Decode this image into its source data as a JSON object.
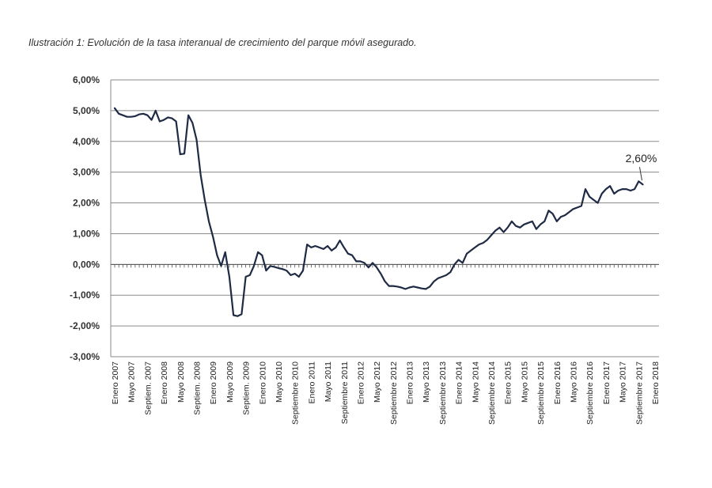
{
  "caption": "Ilustración 1: Evolución de la tasa interanual de crecimiento del parque móvil asegurado.",
  "chart_data": {
    "type": "line",
    "title": "Ilustración 1: Evolución de la tasa interanual de crecimiento del parque móvil asegurado.",
    "xlabel": "",
    "ylabel": "",
    "ylim": [
      -3,
      6
    ],
    "y_ticks": [
      "-3,00%",
      "-2,00%",
      "-1,00%",
      "0,00%",
      "1,00%",
      "2,00%",
      "3,00%",
      "4,00%",
      "5,00%",
      "6,00%"
    ],
    "grid": true,
    "legend": "none",
    "line_color": "#1f2a44",
    "x_ticks": [
      {
        "m": 0,
        "label": "Enero 2007"
      },
      {
        "m": 4,
        "label": "Mayo 2007"
      },
      {
        "m": 8,
        "label": "Septiem. 2007"
      },
      {
        "m": 12,
        "label": "Enero 2008"
      },
      {
        "m": 16,
        "label": "Mayo 2008"
      },
      {
        "m": 20,
        "label": "Septiem. 2008"
      },
      {
        "m": 24,
        "label": "Enero 2009"
      },
      {
        "m": 28,
        "label": "Mayo 2009"
      },
      {
        "m": 32,
        "label": "Septiem. 2009"
      },
      {
        "m": 36,
        "label": "Enero 2010"
      },
      {
        "m": 40,
        "label": "Mayo 2010"
      },
      {
        "m": 44,
        "label": "Septiembre 2010"
      },
      {
        "m": 48,
        "label": "Enero 2011"
      },
      {
        "m": 52,
        "label": "Mayo 2011"
      },
      {
        "m": 56,
        "label": "Septiembre 2011"
      },
      {
        "m": 60,
        "label": "Enero 2012"
      },
      {
        "m": 64,
        "label": "Mayo 2012"
      },
      {
        "m": 68,
        "label": "Septiembre 2012"
      },
      {
        "m": 72,
        "label": "Enero 2013"
      },
      {
        "m": 76,
        "label": "Mayo 2013"
      },
      {
        "m": 80,
        "label": "Septiembre 2013"
      },
      {
        "m": 84,
        "label": "Enero 2014"
      },
      {
        "m": 88,
        "label": "Mayo 2014"
      },
      {
        "m": 92,
        "label": "Septiembre 2014"
      },
      {
        "m": 96,
        "label": "Enero 2015"
      },
      {
        "m": 100,
        "label": "Mayo 2015"
      },
      {
        "m": 104,
        "label": "Septiembre 2015"
      },
      {
        "m": 108,
        "label": "Enero 2016"
      },
      {
        "m": 112,
        "label": "Mayo 2016"
      },
      {
        "m": 116,
        "label": "Septiembre 2016"
      },
      {
        "m": 120,
        "label": "Enero 2017"
      },
      {
        "m": 124,
        "label": "Mayo 2017"
      },
      {
        "m": 128,
        "label": "Septiembre 2017"
      },
      {
        "m": 132,
        "label": "Enero 2018"
      }
    ],
    "series": [
      {
        "points": [
          [
            0,
            5.08
          ],
          [
            1,
            4.9
          ],
          [
            2,
            4.85
          ],
          [
            3,
            4.8
          ],
          [
            4,
            4.8
          ],
          [
            5,
            4.82
          ],
          [
            6,
            4.88
          ],
          [
            7,
            4.9
          ],
          [
            8,
            4.85
          ],
          [
            9,
            4.7
          ],
          [
            10,
            5.0
          ],
          [
            11,
            4.65
          ],
          [
            12,
            4.7
          ],
          [
            13,
            4.78
          ],
          [
            14,
            4.75
          ],
          [
            15,
            4.65
          ],
          [
            16,
            3.58
          ],
          [
            17,
            3.6
          ],
          [
            18,
            4.85
          ],
          [
            19,
            4.6
          ],
          [
            20,
            4.05
          ],
          [
            21,
            2.9
          ],
          [
            22,
            2.1
          ],
          [
            23,
            1.4
          ],
          [
            24,
            0.9
          ],
          [
            25,
            0.3
          ],
          [
            26,
            -0.05
          ],
          [
            27,
            0.4
          ],
          [
            28,
            -0.4
          ],
          [
            29,
            -1.65
          ],
          [
            30,
            -1.68
          ],
          [
            31,
            -1.62
          ],
          [
            32,
            -0.4
          ],
          [
            33,
            -0.35
          ],
          [
            34,
            -0.05
          ],
          [
            35,
            0.4
          ],
          [
            36,
            0.3
          ],
          [
            37,
            -0.2
          ],
          [
            38,
            -0.05
          ],
          [
            39,
            -0.08
          ],
          [
            40,
            -0.12
          ],
          [
            41,
            -0.15
          ],
          [
            42,
            -0.2
          ],
          [
            43,
            -0.35
          ],
          [
            44,
            -0.3
          ],
          [
            45,
            -0.4
          ],
          [
            46,
            -0.2
          ],
          [
            47,
            0.65
          ],
          [
            48,
            0.55
          ],
          [
            49,
            0.6
          ],
          [
            50,
            0.55
          ],
          [
            51,
            0.5
          ],
          [
            52,
            0.6
          ],
          [
            53,
            0.45
          ],
          [
            54,
            0.55
          ],
          [
            55,
            0.78
          ],
          [
            56,
            0.55
          ],
          [
            57,
            0.35
          ],
          [
            58,
            0.3
          ],
          [
            59,
            0.1
          ],
          [
            60,
            0.1
          ],
          [
            61,
            0.05
          ],
          [
            62,
            -0.1
          ],
          [
            63,
            0.05
          ],
          [
            64,
            -0.1
          ],
          [
            65,
            -0.3
          ],
          [
            66,
            -0.55
          ],
          [
            67,
            -0.7
          ],
          [
            68,
            -0.7
          ],
          [
            69,
            -0.72
          ],
          [
            70,
            -0.75
          ],
          [
            71,
            -0.8
          ],
          [
            72,
            -0.75
          ],
          [
            73,
            -0.72
          ],
          [
            74,
            -0.75
          ],
          [
            75,
            -0.78
          ],
          [
            76,
            -0.8
          ],
          [
            77,
            -0.72
          ],
          [
            78,
            -0.55
          ],
          [
            79,
            -0.45
          ],
          [
            80,
            -0.4
          ],
          [
            81,
            -0.35
          ],
          [
            82,
            -0.25
          ],
          [
            83,
            0.0
          ],
          [
            84,
            0.15
          ],
          [
            85,
            0.05
          ],
          [
            86,
            0.35
          ],
          [
            87,
            0.45
          ],
          [
            88,
            0.55
          ],
          [
            89,
            0.65
          ],
          [
            90,
            0.7
          ],
          [
            91,
            0.8
          ],
          [
            92,
            0.95
          ],
          [
            93,
            1.1
          ],
          [
            94,
            1.2
          ],
          [
            95,
            1.05
          ],
          [
            96,
            1.2
          ],
          [
            97,
            1.4
          ],
          [
            98,
            1.25
          ],
          [
            99,
            1.2
          ],
          [
            100,
            1.3
          ],
          [
            101,
            1.35
          ],
          [
            102,
            1.4
          ],
          [
            103,
            1.15
          ],
          [
            104,
            1.3
          ],
          [
            105,
            1.4
          ],
          [
            106,
            1.75
          ],
          [
            107,
            1.65
          ],
          [
            108,
            1.4
          ],
          [
            109,
            1.55
          ],
          [
            110,
            1.6
          ],
          [
            111,
            1.7
          ],
          [
            112,
            1.8
          ],
          [
            113,
            1.85
          ],
          [
            114,
            1.9
          ],
          [
            115,
            2.45
          ],
          [
            116,
            2.2
          ],
          [
            117,
            2.1
          ],
          [
            118,
            2.0
          ],
          [
            119,
            2.3
          ],
          [
            120,
            2.45
          ],
          [
            121,
            2.55
          ],
          [
            122,
            2.3
          ],
          [
            123,
            2.4
          ],
          [
            124,
            2.45
          ],
          [
            125,
            2.45
          ],
          [
            126,
            2.4
          ],
          [
            127,
            2.45
          ],
          [
            128,
            2.7
          ],
          [
            129,
            2.6
          ]
        ]
      }
    ],
    "annotations": [
      {
        "text": "2,60%",
        "x": 129,
        "y": 2.6
      }
    ]
  }
}
